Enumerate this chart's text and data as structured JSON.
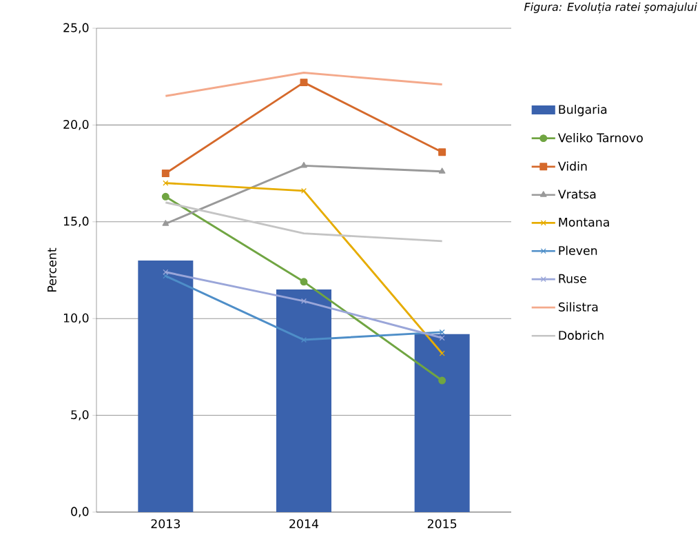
{
  "chart_data": {
    "type": "bar",
    "title": "Figura: Evoluția ratei șomajului",
    "ylabel": "Percent",
    "categories": [
      "2013",
      "2014",
      "2015"
    ],
    "series": [
      {
        "name": "Bulgaria",
        "color": "#3a62ad",
        "values": [
          13.0,
          11.5,
          9.2
        ]
      },
      {
        "name": "Veliko Tarnovo",
        "type": "line",
        "marker": "circle",
        "color": "#70a542",
        "values": [
          16.3,
          11.9,
          6.8
        ]
      },
      {
        "name": "Vidin",
        "type": "line",
        "marker": "square",
        "color": "#d5692b",
        "values": [
          17.5,
          22.2,
          18.6
        ]
      },
      {
        "name": "Vratsa",
        "type": "line",
        "marker": "triangle",
        "color": "#999999",
        "values": [
          14.9,
          17.9,
          17.6
        ]
      },
      {
        "name": "Montana",
        "type": "line",
        "marker": "cross",
        "color": "#e6ac00",
        "values": [
          17.0,
          16.6,
          8.2
        ]
      },
      {
        "name": "Pleven",
        "type": "line",
        "marker": "cross",
        "color": "#4e8ec8",
        "values": [
          12.2,
          8.9,
          9.3
        ]
      },
      {
        "name": "Ruse",
        "type": "line",
        "marker": "cross",
        "color": "#9aa6d9",
        "values": [
          12.4,
          10.9,
          9.0
        ]
      },
      {
        "name": "Silistra",
        "type": "line",
        "marker": "none",
        "color": "#f4a98b",
        "values": [
          21.5,
          22.7,
          22.1
        ]
      },
      {
        "name": "Dobrich",
        "type": "line",
        "marker": "none",
        "color": "#c4c4c4",
        "values": [
          16.0,
          14.4,
          14.0
        ]
      }
    ],
    "ylim": [
      0,
      25
    ],
    "yticks": [
      {
        "value": 0,
        "label": "0,0"
      },
      {
        "value": 5,
        "label": "5,0"
      },
      {
        "value": 10,
        "label": "10,0"
      },
      {
        "value": 15,
        "label": "15,0"
      },
      {
        "value": 20,
        "label": "20,0"
      },
      {
        "value": 25,
        "label": "25,0"
      }
    ],
    "grid": "y",
    "legend": "right"
  }
}
